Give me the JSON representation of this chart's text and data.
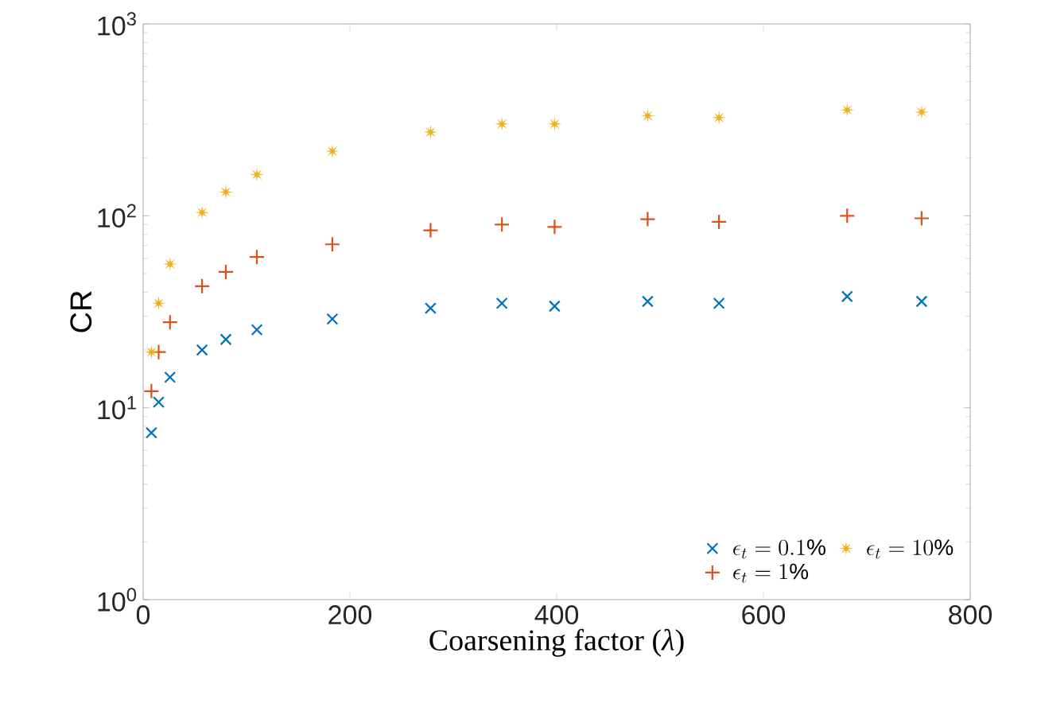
{
  "chart_data": {
    "type": "scatter",
    "xlabel": "Coarsening factor (*λ*)",
    "ylabel": "CR",
    "x": [
      8,
      15,
      26,
      57,
      80,
      110,
      183,
      278,
      347,
      398,
      488,
      557,
      681,
      753
    ],
    "series": [
      {
        "name": "\\epsilon_t = 0.1\\%",
        "color": "#0072bd",
        "marker": "cross",
        "values": [
          7.4,
          10.7,
          14.4,
          20,
          22.7,
          25.5,
          29,
          33,
          35,
          33.8,
          35.8,
          35,
          38,
          35.8
        ]
      },
      {
        "name": "\\epsilon_t = 1\\%",
        "color": "#d95319",
        "marker": "plus",
        "values": [
          12.2,
          19.5,
          27.9,
          43,
          51,
          61,
          71,
          84,
          90,
          87.5,
          96,
          93,
          100,
          97
        ]
      },
      {
        "name": "\\epsilon_t = 10\\%",
        "color": "#edb120",
        "marker": "star",
        "values": [
          19.5,
          35,
          56,
          104,
          133,
          164,
          217,
          273,
          301,
          301,
          332,
          325,
          356,
          347
        ]
      }
    ],
    "xlim": [
      0,
      800
    ],
    "xticks": [
      0,
      200,
      400,
      600,
      800
    ],
    "ylim": [
      1,
      1000
    ],
    "yticks": [
      {
        "value": 1,
        "label": "10$^{0}$"
      },
      {
        "value": 10,
        "label": "10$^{1}$"
      },
      {
        "value": 100,
        "label": "10$^{2}$"
      },
      {
        "value": 1000,
        "label": "10$^{3}$"
      }
    ],
    "log": "y",
    "grid": false,
    "legend": "bottom right"
  }
}
